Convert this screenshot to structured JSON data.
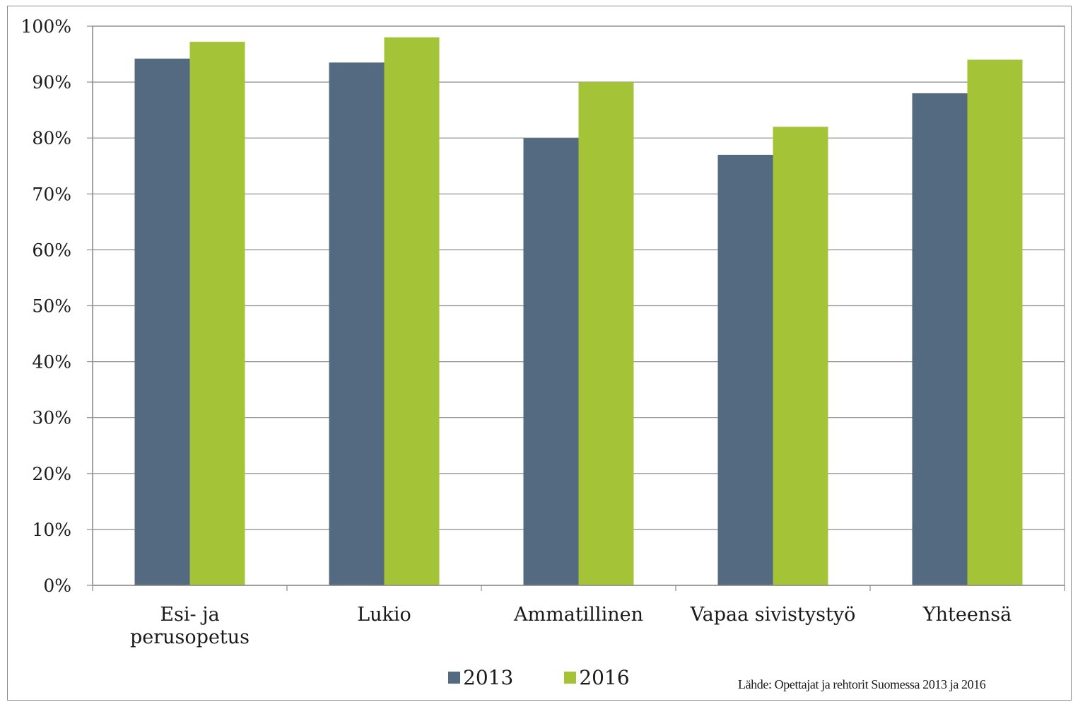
{
  "chart_data": {
    "type": "bar",
    "title": "",
    "xlabel": "",
    "ylabel": "",
    "ylim": [
      0,
      100
    ],
    "yticks": [
      "0%",
      "10%",
      "20%",
      "30%",
      "40%",
      "50%",
      "60%",
      "70%",
      "80%",
      "90%",
      "100%"
    ],
    "categories": [
      [
        "Esi- ja",
        "perusopetus"
      ],
      [
        "Lukio"
      ],
      [
        "Ammatillinen"
      ],
      [
        "Vapaa sivistystyö"
      ],
      [
        "Yhteensä"
      ]
    ],
    "series": [
      {
        "name": "2013",
        "color": "#536a80",
        "values": [
          94.2,
          93.5,
          80,
          77,
          88
        ]
      },
      {
        "name": "2016",
        "color": "#a5c337",
        "values": [
          97.2,
          98,
          90,
          82,
          94
        ]
      }
    ],
    "grid": true,
    "legend_position": "bottom"
  },
  "source_note": "Lähde: Opettajat ja rehtorit Suomessa 2013 ja 2016"
}
